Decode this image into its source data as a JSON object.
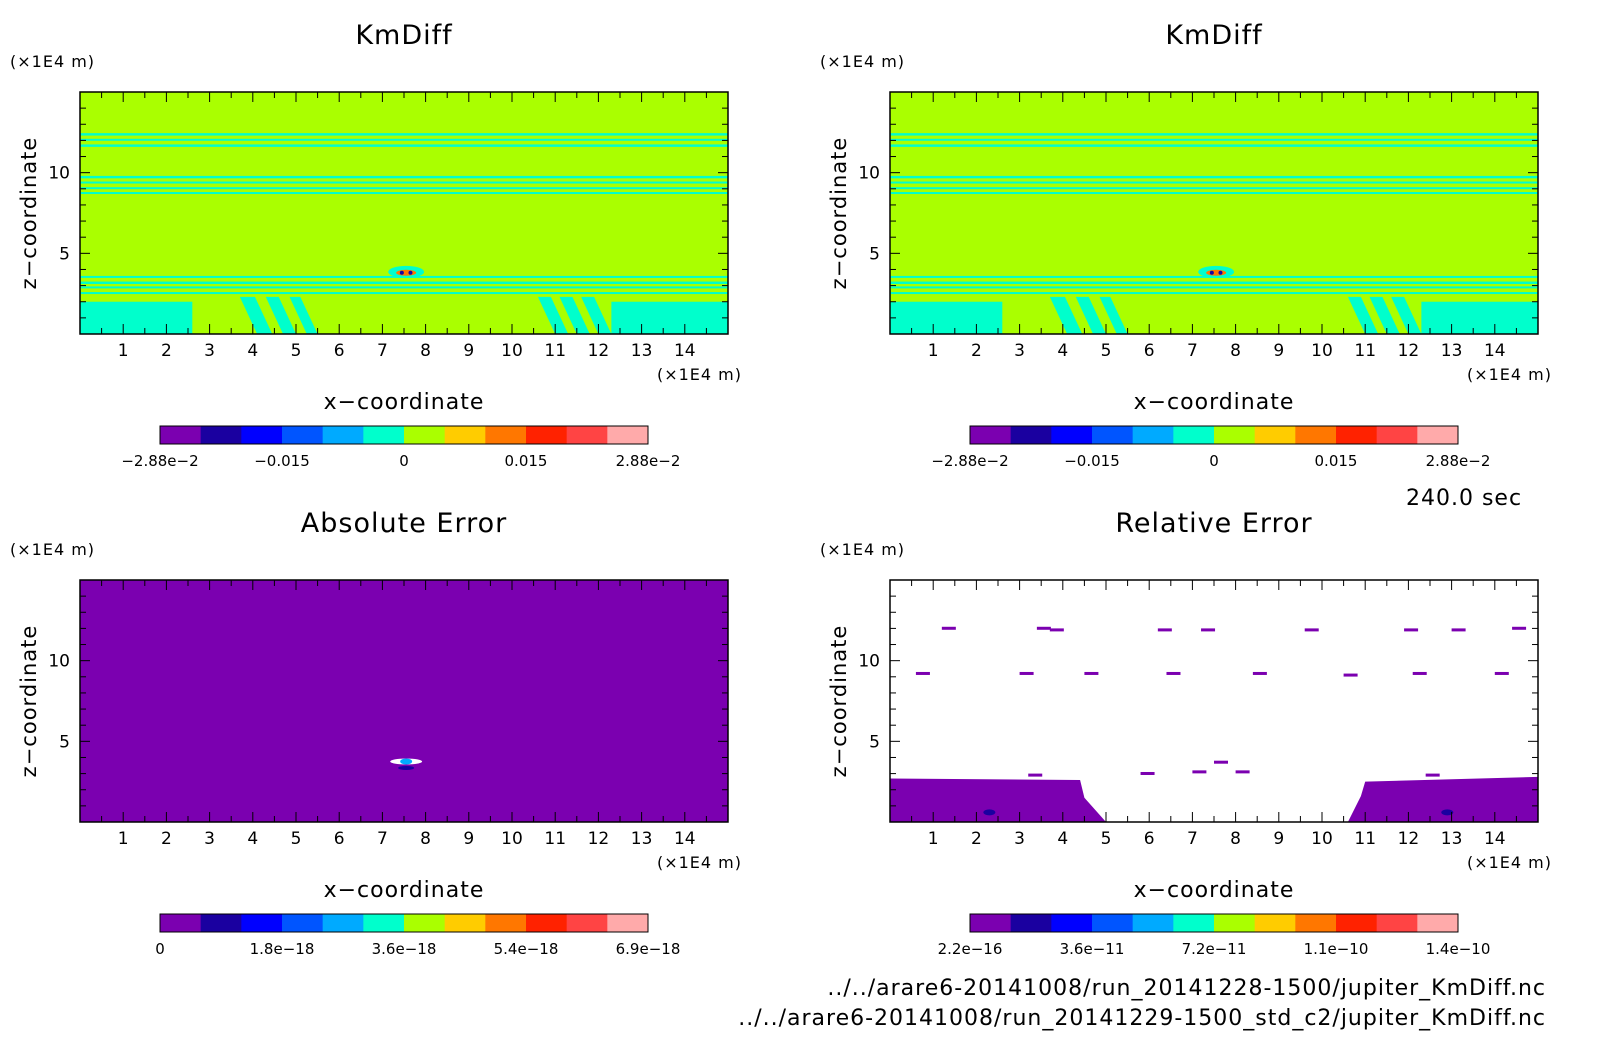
{
  "time_label": "240.0 sec",
  "files": [
    "../../arare6-20141008/run_20141228-1500/jupiter_KmDiff.nc",
    "../../arare6-20141008/run_20141229-1500_std_c2/jupiter_KmDiff.nc"
  ],
  "palette": [
    "#7b00b0",
    "#1a00a0",
    "#0000ff",
    "#0055ff",
    "#00aaff",
    "#00ffcc",
    "#aaff00",
    "#ffcc00",
    "#ff7700",
    "#ff2200",
    "#ff4444",
    "#ffaaaa"
  ],
  "chart_data": [
    {
      "type": "heatmap",
      "title": "KmDiff",
      "xlabel": "x−coordinate",
      "ylabel": "z−coordinate",
      "x_unit": "(×1E4 m)",
      "y_unit": "(×1E4 m)",
      "xlim": [
        0,
        15
      ],
      "ylim": [
        0,
        15
      ],
      "x_ticks": [
        "1",
        "2",
        "3",
        "4",
        "5",
        "6",
        "7",
        "8",
        "9",
        "10",
        "11",
        "12",
        "13",
        "14"
      ],
      "y_ticks": [
        "5",
        "10"
      ],
      "colorbar": {
        "min": -0.0288,
        "max": 0.0288,
        "labels": [
          "−2.88e−2",
          "−0.015",
          "0",
          "0.015",
          "2.88e−2"
        ]
      },
      "background_level": "0"
    },
    {
      "type": "heatmap",
      "title": "KmDiff",
      "xlabel": "x−coordinate",
      "ylabel": "z−coordinate",
      "x_unit": "(×1E4 m)",
      "y_unit": "(×1E4 m)",
      "xlim": [
        0,
        15
      ],
      "ylim": [
        0,
        15
      ],
      "x_ticks": [
        "1",
        "2",
        "3",
        "4",
        "5",
        "6",
        "7",
        "8",
        "9",
        "10",
        "11",
        "12",
        "13",
        "14"
      ],
      "y_ticks": [
        "5",
        "10"
      ],
      "colorbar": {
        "min": -0.0288,
        "max": 0.0288,
        "labels": [
          "−2.88e−2",
          "−0.015",
          "0",
          "0.015",
          "2.88e−2"
        ]
      },
      "background_level": "0"
    },
    {
      "type": "heatmap",
      "title": "Absolute Error",
      "xlabel": "x−coordinate",
      "ylabel": "z−coordinate",
      "x_unit": "(×1E4 m)",
      "y_unit": "(×1E4 m)",
      "xlim": [
        0,
        15
      ],
      "ylim": [
        0,
        15
      ],
      "x_ticks": [
        "1",
        "2",
        "3",
        "4",
        "5",
        "6",
        "7",
        "8",
        "9",
        "10",
        "11",
        "12",
        "13",
        "14"
      ],
      "y_ticks": [
        "5",
        "10"
      ],
      "colorbar": {
        "min": 0,
        "max": 6.9e-18,
        "labels": [
          "0",
          "1.8e−18",
          "3.6e−18",
          "5.4e−18",
          "6.9e−18"
        ]
      },
      "background_level": "0"
    },
    {
      "type": "heatmap",
      "title": "Relative Error",
      "xlabel": "x−coordinate",
      "ylabel": "z−coordinate",
      "x_unit": "(×1E4 m)",
      "y_unit": "(×1E4 m)",
      "xlim": [
        0,
        15
      ],
      "ylim": [
        0,
        15
      ],
      "x_ticks": [
        "1",
        "2",
        "3",
        "4",
        "5",
        "6",
        "7",
        "8",
        "9",
        "10",
        "11",
        "12",
        "13",
        "14"
      ],
      "y_ticks": [
        "5",
        "10"
      ],
      "colorbar": {
        "min": 2.2e-16,
        "max": 1.4e-10,
        "labels": [
          "2.2e−16",
          "3.6e−11",
          "7.2e−11",
          "1.1e−10",
          "1.4e−10"
        ]
      },
      "background_level": "undefined (white)"
    }
  ]
}
